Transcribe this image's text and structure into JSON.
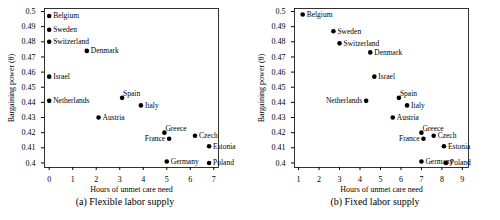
{
  "chart_data": [
    {
      "type": "scatter",
      "title": "(a) Flexible labor supply",
      "x_label": "Hours of unmet care need",
      "y_label": "Bargaining power (θ)",
      "color": "#000000",
      "labels": [
        "Belgium",
        "Sweden",
        "Switzerland",
        "Denmark",
        "Israel",
        "Netherlands",
        "Spain",
        "Italy",
        "Austria",
        "Greece",
        "France",
        "Czech",
        "Estonia",
        "Germany",
        "Poland"
      ],
      "x": [
        0,
        0,
        0,
        1.6,
        0,
        0,
        3.1,
        3.9,
        2.1,
        4.9,
        5.1,
        6.2,
        6.8,
        5.0,
        6.8
      ],
      "y": [
        0.497,
        0.488,
        0.48,
        0.474,
        0.457,
        0.441,
        0.443,
        0.438,
        0.43,
        0.42,
        0.416,
        0.418,
        0.411,
        0.401,
        0.4
      ],
      "xlim": [
        -0.2,
        7.2
      ],
      "xticks": [
        0,
        1,
        2,
        3,
        4,
        5,
        6,
        7
      ],
      "ylim": [
        0.397,
        0.502
      ],
      "yticks": [
        0.4,
        0.41,
        0.42,
        0.43,
        0.44,
        0.45,
        0.46,
        0.47,
        0.48,
        0.49,
        0.5
      ]
    },
    {
      "type": "scatter",
      "title": "(b) Fixed labor supply",
      "x_label": "Hours of unmet care need",
      "y_label": "Bargaining power (θ)",
      "color": "#000000",
      "labels": [
        "Belgium",
        "Sweden",
        "Switzerland",
        "Denmark",
        "Israel",
        "Netherlands",
        "Spain",
        "Italy",
        "Austria",
        "Greece",
        "France",
        "Czech",
        "Estonia",
        "Germany",
        "Poland"
      ],
      "x": [
        1.2,
        2.7,
        3.0,
        4.5,
        4.7,
        4.3,
        5.9,
        6.3,
        5.6,
        7.0,
        7.1,
        7.6,
        8.1,
        7.0,
        8.2
      ],
      "y": [
        0.498,
        0.487,
        0.479,
        0.473,
        0.457,
        0.441,
        0.443,
        0.438,
        0.43,
        0.42,
        0.416,
        0.418,
        0.411,
        0.401,
        0.4
      ],
      "xlim": [
        0.8,
        9.3
      ],
      "xticks": [
        1,
        2,
        3,
        4,
        5,
        6,
        7,
        8,
        9
      ],
      "ylim": [
        0.397,
        0.502
      ],
      "yticks": [
        0.4,
        0.41,
        0.42,
        0.43,
        0.44,
        0.45,
        0.46,
        0.47,
        0.48,
        0.49,
        0.5
      ]
    }
  ]
}
